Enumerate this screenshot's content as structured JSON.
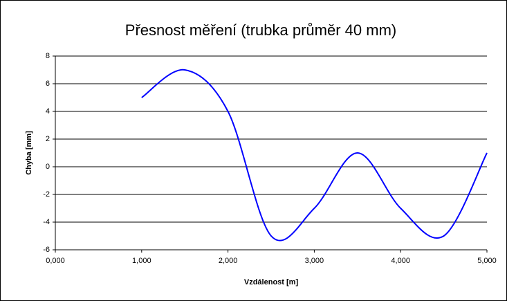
{
  "chart_data": {
    "type": "line",
    "title": "Přesnost měření (trubka průměr 40 mm)",
    "x_label": "Vzdálenost [m]",
    "y_label": "Chyba [mm]",
    "x": [
      1000,
      1500,
      2000,
      2500,
      3000,
      3500,
      4000,
      4500,
      5000
    ],
    "series": [
      {
        "color": "#0000ff",
        "values": [
          5,
          7,
          4,
          -5,
          -3,
          1,
          -3,
          -5,
          1
        ]
      }
    ],
    "xlim": [
      0,
      5000
    ],
    "xticks": [
      {
        "value": 0,
        "label": "0,000"
      },
      {
        "value": 1000,
        "label": "1,000"
      },
      {
        "value": 2000,
        "label": "2,000"
      },
      {
        "value": 3000,
        "label": "3,000"
      },
      {
        "value": 4000,
        "label": "4,000"
      },
      {
        "value": 5000,
        "label": "5,000"
      }
    ],
    "ylim": [
      -6,
      8
    ],
    "yticks": [
      -6,
      -4,
      -2,
      0,
      2,
      4,
      6,
      8
    ],
    "grid": true,
    "smooth": true
  }
}
